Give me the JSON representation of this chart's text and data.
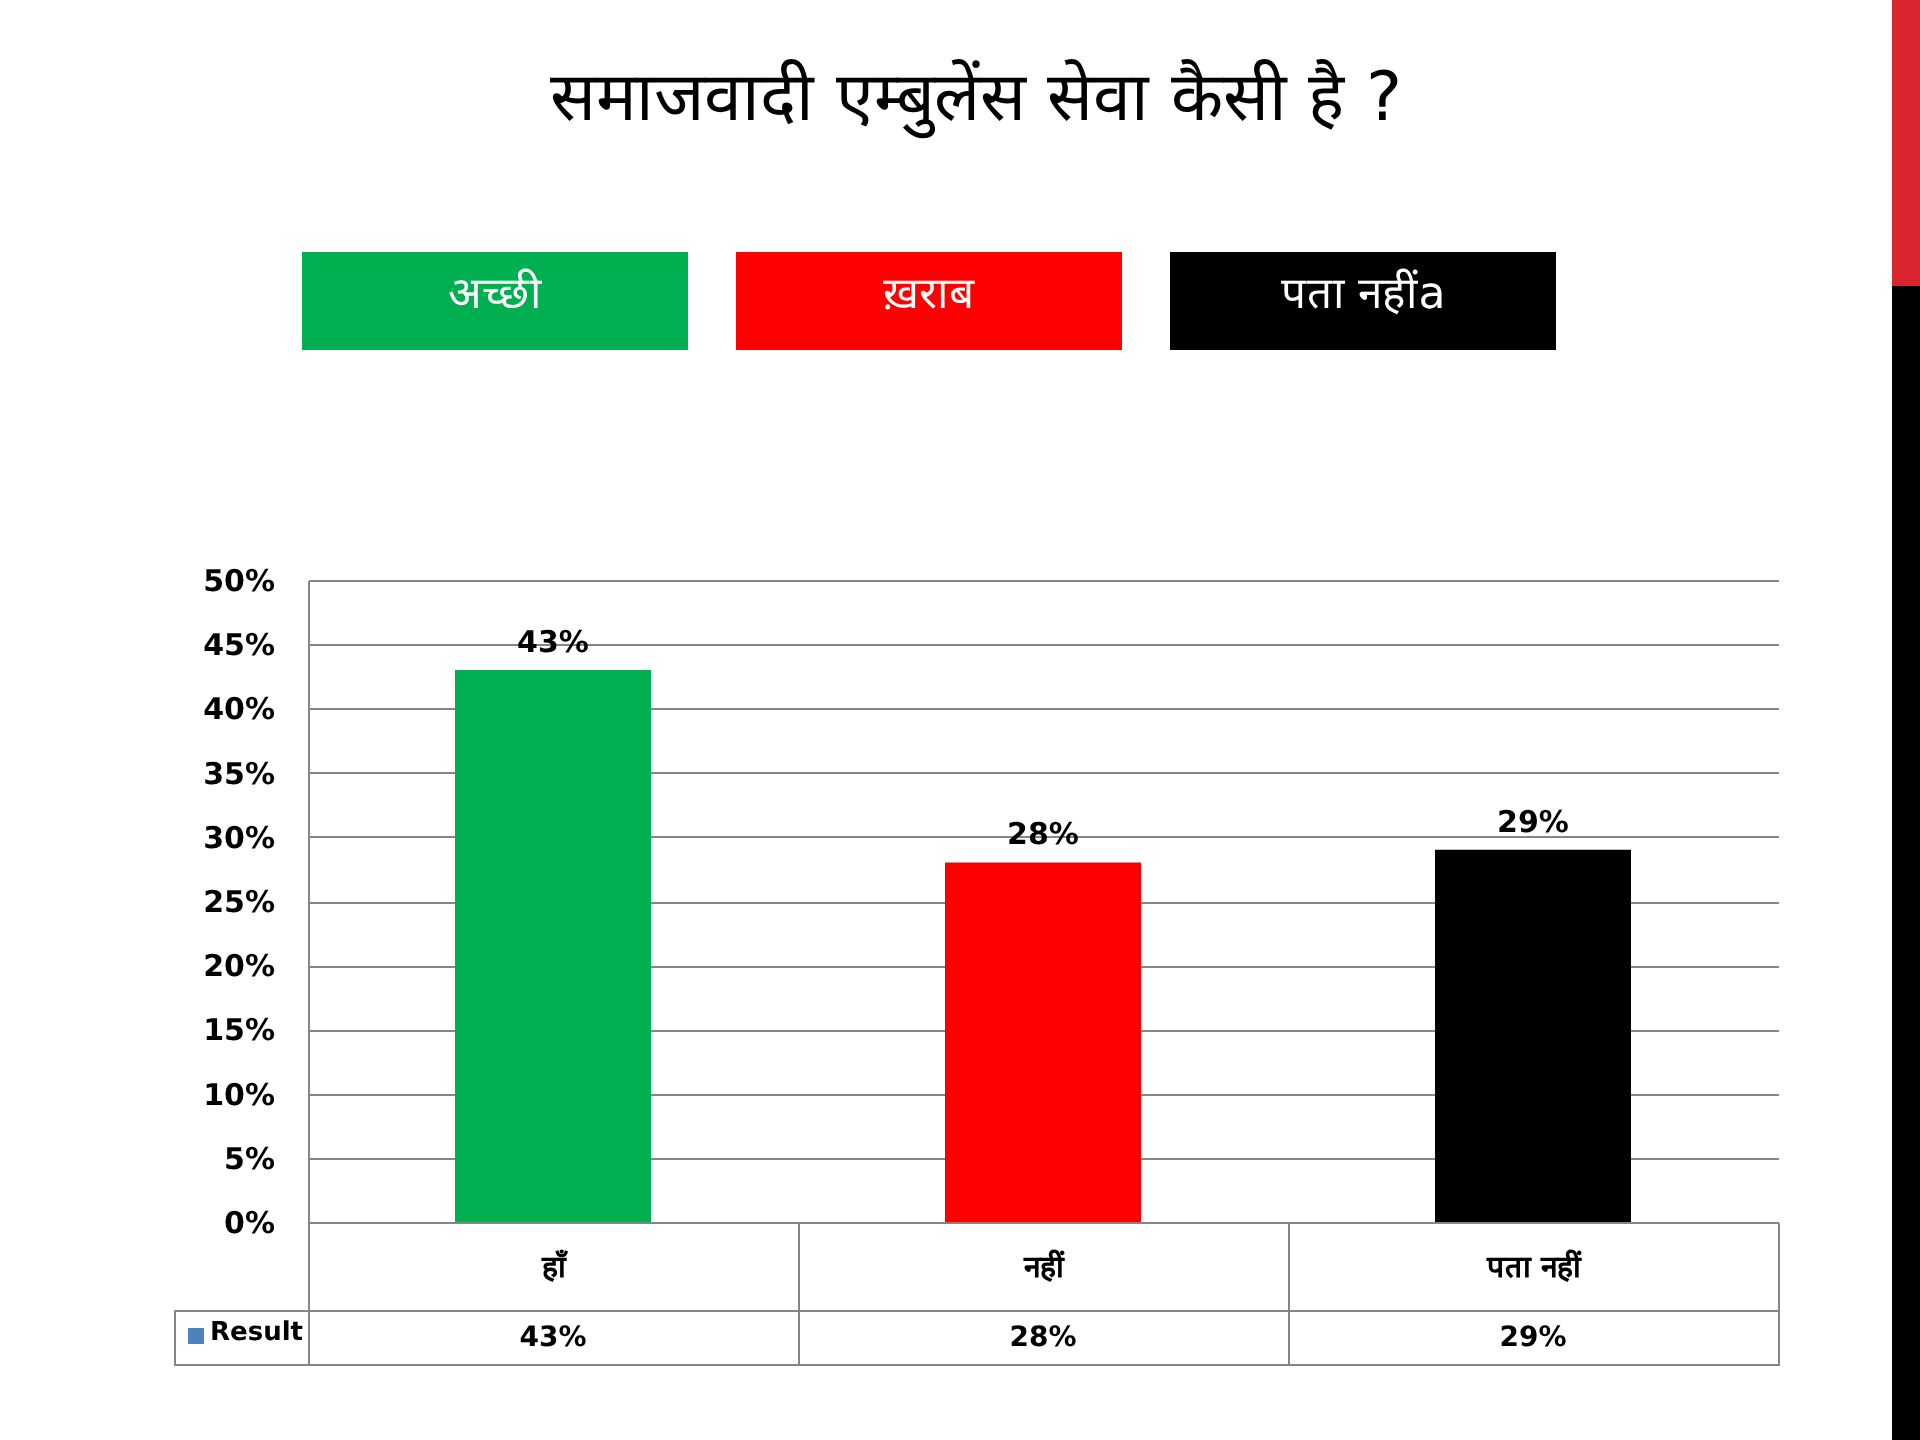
{
  "chart_data": {
    "type": "bar",
    "title": "समाजवादी एम्बुलेंस सेवा कैसी है ?",
    "annotations": [
      "अच्छी",
      "ख़राब",
      "पता नहींa"
    ],
    "categories": [
      "हाँ",
      "नहीं",
      "पता नहीं"
    ],
    "series": [
      {
        "name": "Result",
        "values": [
          43,
          28,
          29
        ]
      }
    ],
    "colors": [
      "#00b050",
      "#ff0000",
      "#000000"
    ],
    "value_labels": [
      "43%",
      "28%",
      "29%"
    ],
    "ylim": [
      0,
      50
    ],
    "yticks": [
      {
        "value": 0,
        "label": "0%"
      },
      {
        "value": 5,
        "label": "5%"
      },
      {
        "value": 10,
        "label": "10%"
      },
      {
        "value": 15,
        "label": "15%"
      },
      {
        "value": 20,
        "label": "20%"
      },
      {
        "value": 25,
        "label": "25%"
      },
      {
        "value": 30,
        "label": "30%"
      },
      {
        "value": 35,
        "label": "35%"
      },
      {
        "value": 40,
        "label": "40%"
      },
      {
        "value": 45,
        "label": "45%"
      },
      {
        "value": 50,
        "label": "50%"
      }
    ],
    "grid": "y",
    "legend": "bottom left"
  }
}
